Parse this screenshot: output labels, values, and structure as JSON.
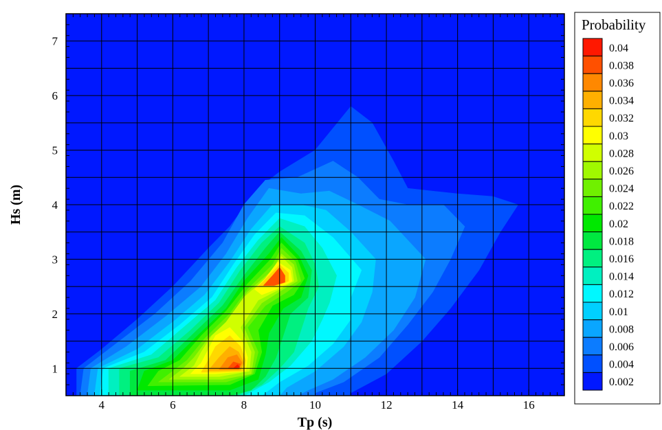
{
  "chart_data": {
    "type": "heatmap",
    "title": "",
    "xlabel": "Tp (s)",
    "ylabel": "Hs (m)",
    "xlim": [
      3,
      17
    ],
    "ylim": [
      0.5,
      7.5
    ],
    "x_ticks": [
      4,
      6,
      8,
      10,
      12,
      14,
      16
    ],
    "y_ticks": [
      1,
      2,
      3,
      4,
      5,
      6,
      7
    ],
    "grid": true,
    "grid_x": [
      4,
      5,
      6,
      7,
      8,
      9,
      10,
      11,
      12,
      13,
      14,
      15,
      16
    ],
    "grid_y": [
      1,
      1.5,
      2,
      2.5,
      3,
      3.5,
      4,
      4.5,
      5,
      5.5,
      6,
      6.5,
      7
    ],
    "legend_title": "Probability",
    "legend_placement": "right",
    "levels": [
      0.002,
      0.004,
      0.006,
      0.008,
      0.01,
      0.012,
      0.014,
      0.016,
      0.018,
      0.02,
      0.022,
      0.024,
      0.026,
      0.028,
      0.03,
      0.032,
      0.034,
      0.036,
      0.038,
      0.04
    ],
    "level_labels": [
      "0.002",
      "0.004",
      "0.006",
      "0.008",
      "0.01",
      "0.012",
      "0.014",
      "0.016",
      "0.018",
      "0.02",
      "0.022",
      "0.024",
      "0.026",
      "0.028",
      "0.03",
      "0.032",
      "0.034",
      "0.036",
      "0.038",
      "0.04"
    ],
    "level_colors": [
      "#0018ff",
      "#0050ff",
      "#0c7cff",
      "#0aa6ff",
      "#00d0ff",
      "#00f8ff",
      "#00f0c0",
      "#00f080",
      "#00e840",
      "#00e800",
      "#40f000",
      "#70f000",
      "#a0f800",
      "#d0ff00",
      "#ffff00",
      "#ffd800",
      "#ffb000",
      "#ff8800",
      "#ff5000",
      "#ff1800"
    ],
    "contours": [
      {
        "level": 0.004,
        "points": [
          [
            3.3,
            0.5
          ],
          [
            3.3,
            1.0
          ],
          [
            4.0,
            1.35
          ],
          [
            5.0,
            1.9
          ],
          [
            6.0,
            2.5
          ],
          [
            7.0,
            3.2
          ],
          [
            7.6,
            3.6
          ],
          [
            8.4,
            4.3
          ],
          [
            9.0,
            4.6
          ],
          [
            10.0,
            5.0
          ],
          [
            11.0,
            5.8
          ],
          [
            11.6,
            5.5
          ],
          [
            12.2,
            4.8
          ],
          [
            12.6,
            4.3
          ],
          [
            14.0,
            4.2
          ],
          [
            15.0,
            4.15
          ],
          [
            15.7,
            4.0
          ],
          [
            15.2,
            3.5
          ],
          [
            14.6,
            2.8
          ],
          [
            13.8,
            2.1
          ],
          [
            13.0,
            1.5
          ],
          [
            12.0,
            0.9
          ],
          [
            11.0,
            0.55
          ],
          [
            11.0,
            0.5
          ]
        ]
      },
      {
        "level": 0.006,
        "points": [
          [
            3.4,
            0.5
          ],
          [
            3.5,
            1.0
          ],
          [
            4.5,
            1.5
          ],
          [
            5.5,
            2.0
          ],
          [
            6.5,
            2.6
          ],
          [
            7.4,
            3.3
          ],
          [
            8.0,
            4.0
          ],
          [
            8.6,
            4.45
          ],
          [
            9.5,
            4.5
          ],
          [
            10.5,
            4.8
          ],
          [
            11.2,
            4.5
          ],
          [
            11.8,
            4.1
          ],
          [
            12.6,
            4.0
          ],
          [
            13.6,
            4.0
          ],
          [
            14.2,
            3.6
          ],
          [
            13.8,
            3.0
          ],
          [
            13.3,
            2.4
          ],
          [
            12.6,
            1.8
          ],
          [
            11.8,
            1.2
          ],
          [
            10.8,
            0.75
          ],
          [
            10.0,
            0.55
          ],
          [
            10.0,
            0.5
          ]
        ]
      },
      {
        "level": 0.008,
        "points": [
          [
            3.6,
            0.5
          ],
          [
            3.7,
            1.0
          ],
          [
            4.7,
            1.4
          ],
          [
            5.8,
            1.95
          ],
          [
            6.8,
            2.5
          ],
          [
            7.5,
            3.1
          ],
          [
            8.1,
            3.75
          ],
          [
            8.7,
            4.3
          ],
          [
            9.6,
            4.2
          ],
          [
            10.4,
            4.25
          ],
          [
            11.2,
            4.0
          ],
          [
            12.1,
            3.7
          ],
          [
            13.1,
            3.0
          ],
          [
            12.8,
            2.3
          ],
          [
            12.2,
            1.7
          ],
          [
            11.4,
            1.2
          ],
          [
            10.5,
            0.8
          ],
          [
            9.8,
            0.6
          ],
          [
            9.5,
            0.5
          ]
        ]
      },
      {
        "level": 0.01,
        "points": [
          [
            3.8,
            0.5
          ],
          [
            3.9,
            1.0
          ],
          [
            5.0,
            1.35
          ],
          [
            6.0,
            1.85
          ],
          [
            6.9,
            2.35
          ],
          [
            7.6,
            2.95
          ],
          [
            8.2,
            3.55
          ],
          [
            8.8,
            4.0
          ],
          [
            9.6,
            4.0
          ],
          [
            10.3,
            3.9
          ],
          [
            11.0,
            3.5
          ],
          [
            11.7,
            3.0
          ],
          [
            11.6,
            2.4
          ],
          [
            11.3,
            1.85
          ],
          [
            10.8,
            1.4
          ],
          [
            10.0,
            0.95
          ],
          [
            9.2,
            0.65
          ],
          [
            9.0,
            0.5
          ]
        ]
      },
      {
        "level": 0.012,
        "points": [
          [
            3.95,
            0.5
          ],
          [
            4.05,
            1.0
          ],
          [
            5.2,
            1.3
          ],
          [
            6.2,
            1.8
          ],
          [
            7.1,
            2.3
          ],
          [
            7.7,
            2.9
          ],
          [
            8.3,
            3.45
          ],
          [
            8.9,
            3.85
          ],
          [
            9.7,
            3.8
          ],
          [
            10.5,
            3.4
          ],
          [
            11.3,
            2.8
          ],
          [
            11.0,
            2.3
          ],
          [
            11.0,
            1.9
          ],
          [
            10.5,
            1.45
          ],
          [
            9.8,
            1.05
          ],
          [
            9.0,
            0.75
          ],
          [
            8.5,
            0.5
          ]
        ]
      },
      {
        "level": 0.014,
        "points": [
          [
            4.2,
            0.5
          ],
          [
            4.2,
            1.0
          ],
          [
            5.4,
            1.25
          ],
          [
            6.3,
            1.75
          ],
          [
            7.2,
            2.25
          ],
          [
            7.8,
            2.85
          ],
          [
            8.4,
            3.35
          ],
          [
            9.0,
            3.75
          ],
          [
            9.7,
            3.6
          ],
          [
            10.2,
            3.2
          ],
          [
            10.6,
            2.7
          ],
          [
            10.4,
            2.2
          ],
          [
            10.2,
            1.9
          ],
          [
            9.9,
            1.5
          ],
          [
            9.3,
            1.05
          ],
          [
            8.7,
            0.75
          ],
          [
            8.0,
            0.5
          ]
        ]
      },
      {
        "level": 0.016,
        "points": [
          [
            4.5,
            0.5
          ],
          [
            4.5,
            1.0
          ],
          [
            5.6,
            1.2
          ],
          [
            6.5,
            1.7
          ],
          [
            7.3,
            2.2
          ],
          [
            7.9,
            2.8
          ],
          [
            8.5,
            3.3
          ],
          [
            9.0,
            3.6
          ],
          [
            9.7,
            3.3
          ],
          [
            10.0,
            2.9
          ],
          [
            10.1,
            2.5
          ],
          [
            9.8,
            2.1
          ],
          [
            9.6,
            1.7
          ],
          [
            9.4,
            1.3
          ],
          [
            9.0,
            1.0
          ],
          [
            8.5,
            0.7
          ],
          [
            7.8,
            0.5
          ]
        ]
      },
      {
        "level": 0.018,
        "points": [
          [
            4.8,
            0.5
          ],
          [
            4.8,
            0.95
          ],
          [
            5.8,
            1.15
          ],
          [
            6.6,
            1.65
          ],
          [
            7.4,
            2.15
          ],
          [
            8.0,
            2.7
          ],
          [
            8.6,
            3.2
          ],
          [
            9.0,
            3.5
          ],
          [
            9.6,
            3.15
          ],
          [
            9.9,
            2.8
          ],
          [
            9.8,
            2.3
          ],
          [
            9.3,
            2.0
          ],
          [
            9.1,
            1.6
          ],
          [
            8.9,
            1.2
          ],
          [
            8.6,
            0.85
          ],
          [
            8.2,
            0.6
          ],
          [
            7.6,
            0.5
          ]
        ]
      },
      {
        "level": 0.02,
        "points": [
          [
            5.0,
            0.6
          ],
          [
            5.2,
            0.95
          ],
          [
            6.0,
            1.15
          ],
          [
            6.7,
            1.6
          ],
          [
            7.5,
            2.1
          ],
          [
            8.0,
            2.6
          ],
          [
            8.7,
            3.1
          ],
          [
            9.05,
            3.4
          ],
          [
            9.55,
            3.05
          ],
          [
            9.8,
            2.7
          ],
          [
            9.6,
            2.3
          ],
          [
            9.1,
            2.1
          ],
          [
            8.7,
            1.65
          ],
          [
            8.6,
            1.25
          ],
          [
            8.4,
            0.8
          ],
          [
            7.6,
            0.6
          ]
        ]
      },
      {
        "level": 0.022,
        "points": [
          [
            5.3,
            0.68
          ],
          [
            5.6,
            0.95
          ],
          [
            6.2,
            1.15
          ],
          [
            6.8,
            1.6
          ],
          [
            7.5,
            2.05
          ],
          [
            8.1,
            2.55
          ],
          [
            8.75,
            3.0
          ],
          [
            9.05,
            3.3
          ],
          [
            9.5,
            3.0
          ],
          [
            9.7,
            2.65
          ],
          [
            9.4,
            2.35
          ],
          [
            8.8,
            2.15
          ],
          [
            8.4,
            1.7
          ],
          [
            8.5,
            1.3
          ],
          [
            8.3,
            0.9
          ],
          [
            7.6,
            0.7
          ]
        ]
      },
      {
        "level": 0.024,
        "points": [
          [
            5.6,
            0.75
          ],
          [
            6.0,
            0.95
          ],
          [
            6.4,
            1.15
          ],
          [
            6.9,
            1.55
          ],
          [
            7.6,
            2.0
          ],
          [
            8.1,
            2.45
          ],
          [
            8.8,
            2.9
          ],
          [
            9.05,
            3.2
          ],
          [
            9.45,
            2.95
          ],
          [
            9.6,
            2.6
          ],
          [
            9.2,
            2.4
          ],
          [
            8.6,
            2.15
          ],
          [
            8.1,
            1.75
          ],
          [
            8.4,
            1.3
          ],
          [
            8.25,
            0.9
          ],
          [
            7.5,
            0.75
          ]
        ]
      },
      {
        "level": 0.026,
        "points": [
          [
            5.9,
            0.8
          ],
          [
            6.3,
            1.0
          ],
          [
            6.6,
            1.2
          ],
          [
            7.0,
            1.55
          ],
          [
            7.6,
            1.9
          ],
          [
            8.1,
            2.4
          ],
          [
            8.8,
            2.8
          ],
          [
            9.05,
            3.1
          ],
          [
            9.4,
            2.9
          ],
          [
            9.5,
            2.6
          ],
          [
            9.1,
            2.45
          ],
          [
            8.5,
            2.2
          ],
          [
            8.0,
            1.75
          ],
          [
            8.3,
            1.3
          ],
          [
            8.2,
            0.9
          ],
          [
            7.4,
            0.8
          ]
        ]
      },
      {
        "level": 0.028,
        "points": [
          [
            6.2,
            0.85
          ],
          [
            6.6,
            1.05
          ],
          [
            6.8,
            1.3
          ],
          [
            7.1,
            1.6
          ],
          [
            7.5,
            1.85
          ],
          [
            8.0,
            2.3
          ],
          [
            8.7,
            2.7
          ],
          [
            9.05,
            3.05
          ],
          [
            9.35,
            2.85
          ],
          [
            9.4,
            2.6
          ],
          [
            9.0,
            2.45
          ],
          [
            8.4,
            2.25
          ],
          [
            7.9,
            1.75
          ],
          [
            8.2,
            1.3
          ],
          [
            8.15,
            0.95
          ],
          [
            7.3,
            0.85
          ]
        ]
      },
      {
        "level": 0.03,
        "points": [
          [
            6.5,
            0.9
          ],
          [
            6.8,
            1.1
          ],
          [
            7.0,
            1.35
          ],
          [
            7.2,
            1.6
          ],
          [
            7.6,
            1.75
          ],
          [
            7.95,
            1.5
          ],
          [
            8.1,
            1.2
          ],
          [
            8.05,
            0.95
          ],
          [
            7.2,
            0.9
          ]
        ]
      },
      {
        "level": 0.03,
        "points": [
          [
            8.3,
            2.45
          ],
          [
            8.6,
            2.65
          ],
          [
            8.95,
            2.95
          ],
          [
            9.3,
            2.8
          ],
          [
            9.35,
            2.6
          ],
          [
            8.9,
            2.45
          ],
          [
            8.5,
            2.35
          ]
        ]
      },
      {
        "level": 0.032,
        "points": [
          [
            6.8,
            0.93
          ],
          [
            7.0,
            1.15
          ],
          [
            7.2,
            1.4
          ],
          [
            7.6,
            1.6
          ],
          [
            7.9,
            1.4
          ],
          [
            8.05,
            1.15
          ],
          [
            8.0,
            0.95
          ],
          [
            7.2,
            0.93
          ]
        ]
      },
      {
        "level": 0.032,
        "points": [
          [
            8.4,
            2.5
          ],
          [
            8.7,
            2.7
          ],
          [
            9.0,
            2.9
          ],
          [
            9.25,
            2.75
          ],
          [
            9.25,
            2.6
          ],
          [
            8.9,
            2.5
          ]
        ]
      },
      {
        "level": 0.034,
        "points": [
          [
            7.0,
            0.96
          ],
          [
            7.3,
            1.2
          ],
          [
            7.6,
            1.4
          ],
          [
            7.85,
            1.3
          ],
          [
            8.0,
            1.1
          ],
          [
            7.9,
            0.97
          ]
        ]
      },
      {
        "level": 0.036,
        "points": [
          [
            7.3,
            0.98
          ],
          [
            7.55,
            1.2
          ],
          [
            7.8,
            1.25
          ],
          [
            7.95,
            1.1
          ],
          [
            7.85,
            0.98
          ]
        ]
      },
      {
        "level": 0.038,
        "points": [
          [
            7.55,
            1.0
          ],
          [
            7.7,
            1.12
          ],
          [
            7.9,
            1.08
          ],
          [
            7.85,
            1.0
          ]
        ]
      },
      {
        "level": 0.04,
        "points": [
          [
            7.72,
            1.01
          ],
          [
            7.82,
            1.07
          ],
          [
            7.88,
            1.02
          ]
        ]
      },
      {
        "level": 0.038,
        "points": [
          [
            8.55,
            2.52
          ],
          [
            8.8,
            2.7
          ],
          [
            9.0,
            2.85
          ],
          [
            9.15,
            2.7
          ],
          [
            9.15,
            2.58
          ],
          [
            8.85,
            2.52
          ]
        ]
      }
    ]
  }
}
